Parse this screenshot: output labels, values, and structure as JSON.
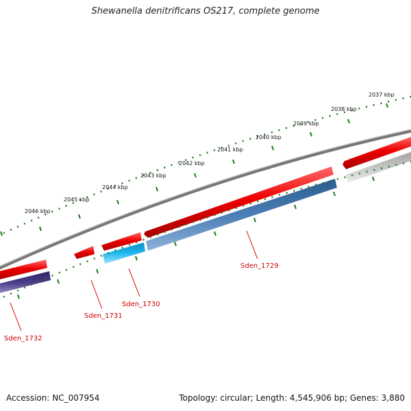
{
  "title": "Shewanella denitrificans OS217, complete genome",
  "footer": {
    "accession": "Accession: NC_007954",
    "topology": "Topology: circular; Length: 4,545,906 bp; Genes: 3,880"
  },
  "map": {
    "tick_labels": [
      "2037 kbp",
      "2038 kbp",
      "2039 kbp",
      "2040 kbp",
      "2041 kbp",
      "2042 kbp",
      "2043 kbp",
      "2044 kbp",
      "2045 kbp",
      "2046 kbp"
    ],
    "gene_labels": [
      "Sden_1729",
      "Sden_1730",
      "Sden_1731",
      "Sden_1732"
    ],
    "colors": {
      "backbone": "#888888",
      "gene_forward": "#ee0000",
      "cds_steelblue": "#4a7eb5",
      "cds_cyan": "#20b8ee",
      "cds_purple": "#4a3c8a",
      "cds_grey": "#c4c4c4",
      "ticks": "#1a7a1a",
      "label": "#cc0000"
    }
  }
}
